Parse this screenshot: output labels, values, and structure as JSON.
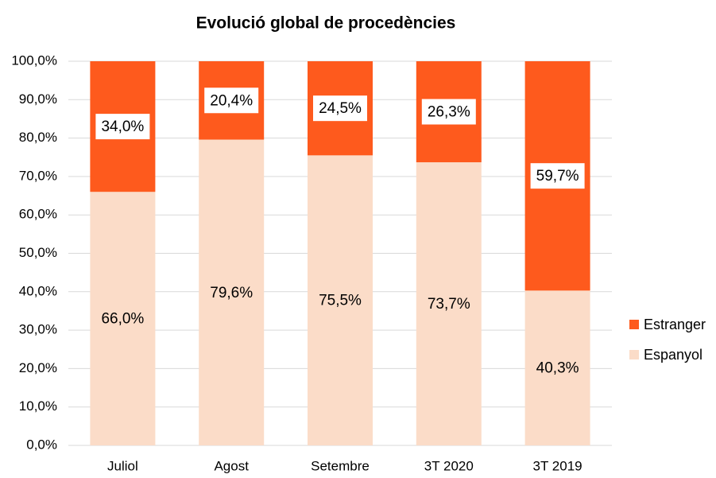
{
  "chart_data": {
    "type": "stacked_bar",
    "title": "Evolució global de procedències",
    "categories": [
      "Juliol",
      "Agost",
      "Setembre",
      "3T 2020",
      "3T 2019"
    ],
    "series": [
      {
        "name": "Espanyol",
        "color": "#fbdcc8",
        "values": [
          66.0,
          79.6,
          75.5,
          73.7,
          40.3
        ],
        "value_labels": [
          "66,0%",
          "79,6%",
          "75,5%",
          "73,7%",
          "40,3%"
        ]
      },
      {
        "name": "Estranger",
        "color": "#fe5a1d",
        "values": [
          34.0,
          20.4,
          24.5,
          26.3,
          59.7
        ],
        "value_labels": [
          "34,0%",
          "20,4%",
          "24,5%",
          "26,3%",
          "59,7%"
        ]
      }
    ],
    "ylim": [
      0,
      100
    ],
    "yticks": [
      {
        "value": 0,
        "label": "0,0%"
      },
      {
        "value": 10,
        "label": "10,0%"
      },
      {
        "value": 20,
        "label": "20,0%"
      },
      {
        "value": 30,
        "label": "30,0%"
      },
      {
        "value": 40,
        "label": "40,0%"
      },
      {
        "value": 50,
        "label": "50,0%"
      },
      {
        "value": 60,
        "label": "60,0%"
      },
      {
        "value": 70,
        "label": "70,0%"
      },
      {
        "value": 80,
        "label": "80,0%"
      },
      {
        "value": 90,
        "label": "90,0%"
      },
      {
        "value": 100,
        "label": "100,0%"
      }
    ],
    "grid": true,
    "legend": "right"
  }
}
